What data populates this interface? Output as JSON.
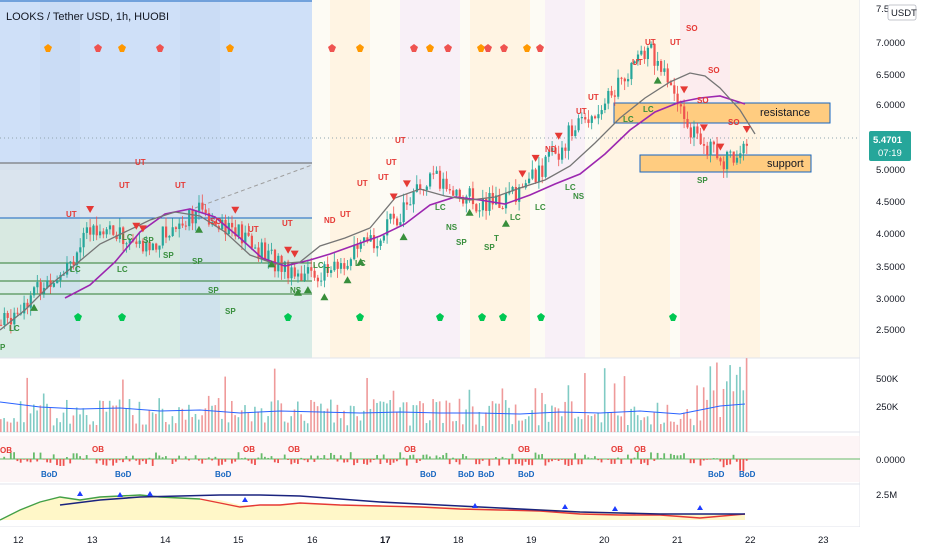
{
  "title": "LOOKS / Tether USD, 1h, HUOBI",
  "currency": "USDT",
  "price_axis": {
    "labels": [
      "7.5",
      "7.0000",
      "6.5000",
      "6.0000",
      "5.5000",
      "5.0000",
      "4.5000",
      "4.0000",
      "3.5000",
      "3.0000",
      "2.5000"
    ],
    "current_price": "5.4701",
    "countdown": "07:19",
    "current_color": "#26a69a"
  },
  "volume_axis": [
    "500K",
    "250K"
  ],
  "osc_axis": [
    "0.0000"
  ],
  "obv_axis": [
    "2.5M"
  ],
  "time_axis": [
    "12",
    "13",
    "14",
    "15",
    "16",
    "17",
    "18",
    "19",
    "20",
    "21",
    "22",
    "23"
  ],
  "zones": {
    "resistance": "resistance",
    "support": "support"
  },
  "signals": {
    "ut": "UT",
    "so": "SO",
    "lc": "LC",
    "sp": "SP",
    "nd": "ND",
    "ns": "NS",
    "t": "T",
    "p": "P",
    "ob": "OB",
    "bod": "BoD"
  },
  "colors": {
    "up": "#26a69a",
    "down": "#ef5350",
    "signal_up": "#388e3c",
    "signal_down": "#e53935",
    "ma_fast": "#757575",
    "ma_slow": "#9c27b0",
    "zone_fill": "#ffcc80",
    "zone_border": "#1565c0"
  },
  "chart_data": {
    "type": "candlestick",
    "series": [
      {
        "name": "price",
        "x_start": "12",
        "close": [
          2.6,
          3.0,
          3.3,
          3.7,
          4.2,
          4.0,
          3.8,
          4.1,
          4.4,
          4.3,
          4.0,
          3.7,
          3.5,
          3.4,
          3.5,
          3.8,
          4.1,
          4.6,
          4.9,
          4.7,
          4.5,
          4.6,
          4.9,
          5.3,
          5.8,
          6.1,
          6.6,
          7.0,
          6.2,
          5.5,
          5.2,
          5.47
        ]
      }
    ],
    "ylim": [
      2.2,
      7.6
    ]
  }
}
